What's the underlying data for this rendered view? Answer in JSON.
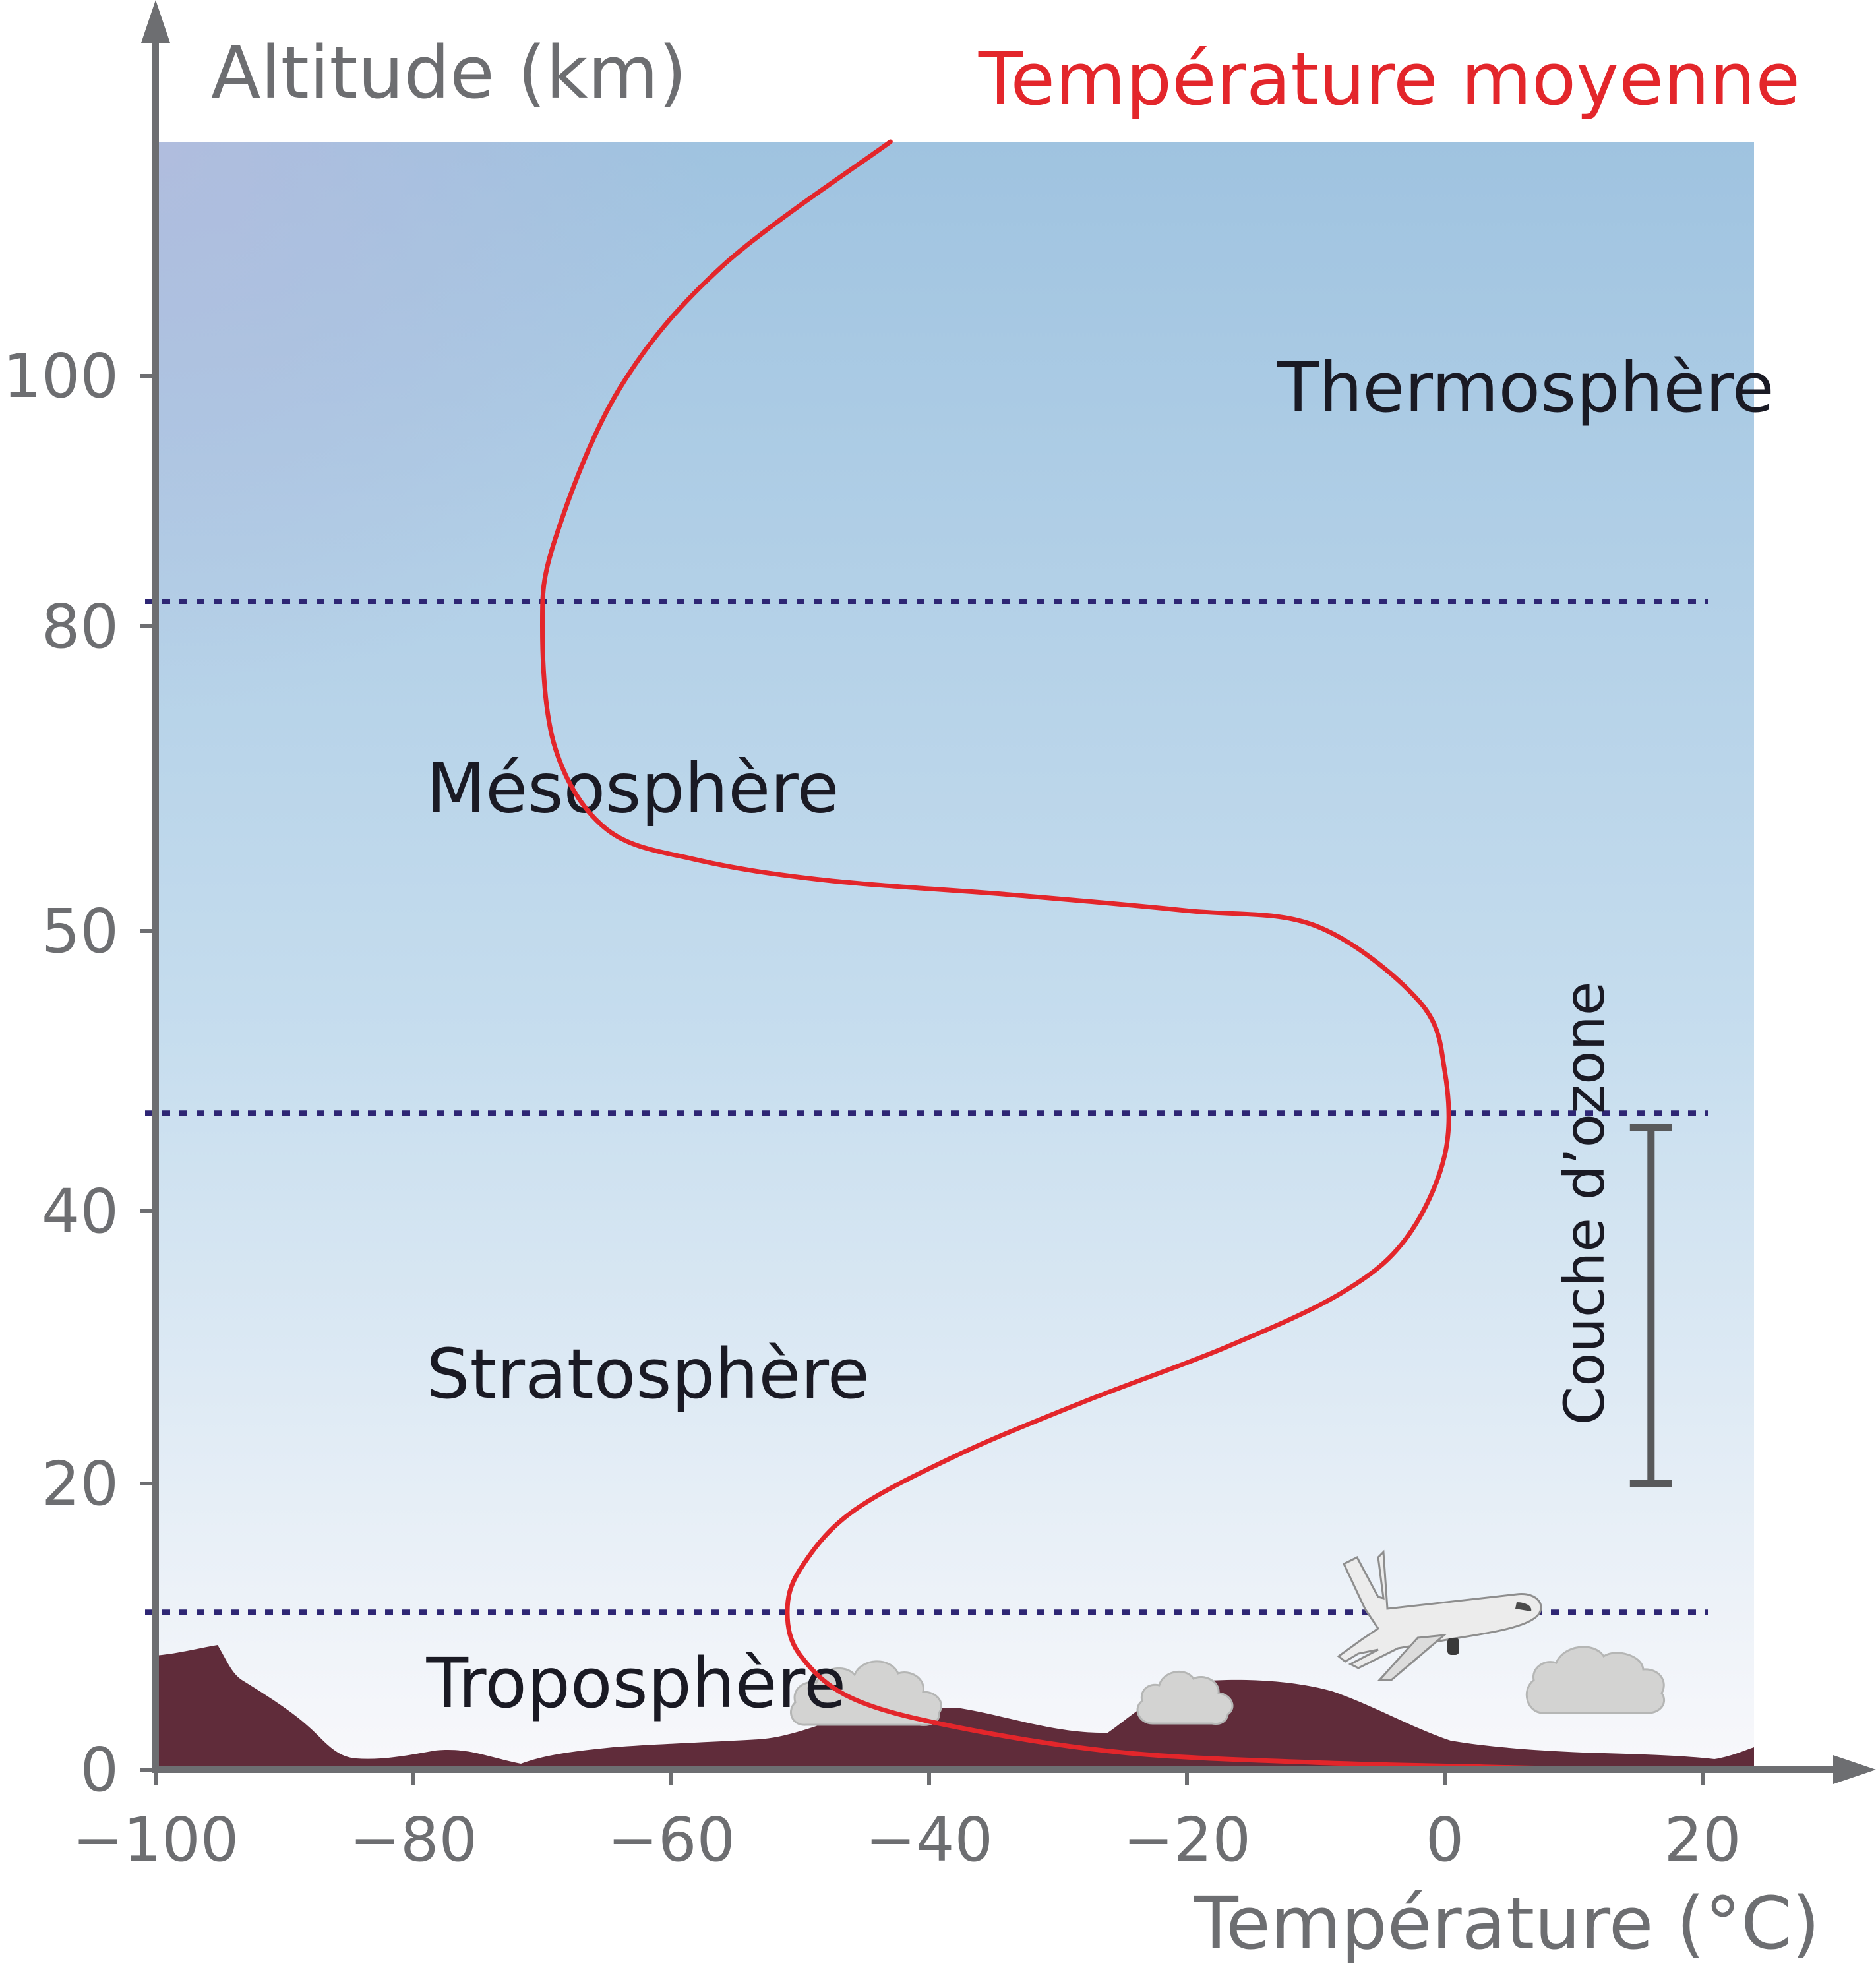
{
  "chart_data": {
    "type": "line",
    "xlabel": "Température (°C)",
    "ylabel": "Altitude (km)",
    "xlim": [
      -100,
      23
    ],
    "ylim": [
      0,
      117
    ],
    "x_ticks": [
      -100,
      -80,
      -60,
      -40,
      -20,
      0,
      20
    ],
    "x_tick_labels": [
      "−100",
      "−80",
      "−60",
      "−40",
      "−20",
      "0",
      "20"
    ],
    "y_ticks": [
      0,
      20,
      40,
      50,
      80,
      100
    ],
    "y_tick_labels": [
      "0",
      "20",
      "40",
      "50",
      "80",
      "100"
    ],
    "y_scale": "piecewise",
    "y_scale_segments": [
      {
        "from": 0,
        "to": 40,
        "gap_per_unit": 11.0
      },
      {
        "from": 40,
        "to": 50,
        "gap_per_unit": 21.0
      },
      {
        "from": 50,
        "to": 80,
        "gap_per_unit": 11.0
      },
      {
        "from": 80,
        "to": 117,
        "gap_per_unit": 9.2
      }
    ],
    "series": [
      {
        "name": "Température moyenne",
        "color": "#e3262b",
        "points": [
          [
            13,
            0
          ],
          [
            3,
            0.2
          ],
          [
            -10,
            0.5
          ],
          [
            -25,
            1.2
          ],
          [
            -38,
            3
          ],
          [
            -46,
            5
          ],
          [
            -50,
            8
          ],
          [
            -51,
            11
          ],
          [
            -50,
            14
          ],
          [
            -46,
            18
          ],
          [
            -38,
            22
          ],
          [
            -28,
            26
          ],
          [
            -17,
            30
          ],
          [
            -8,
            34
          ],
          [
            -3,
            38
          ],
          [
            0,
            42
          ],
          [
            0,
            45
          ],
          [
            -2,
            47.5
          ],
          [
            -10,
            50.5
          ],
          [
            -20,
            52
          ],
          [
            -33,
            53.5
          ],
          [
            -48,
            55
          ],
          [
            -58,
            57
          ],
          [
            -65,
            60
          ],
          [
            -69,
            68
          ],
          [
            -70,
            80
          ],
          [
            -69,
            87
          ],
          [
            -64,
            99
          ],
          [
            -56,
            108
          ],
          [
            -43,
            117
          ]
        ]
      }
    ],
    "boundaries": [
      {
        "altitude": 11,
        "style": "dotted",
        "color": "#2e2674"
      },
      {
        "altitude": 43.5,
        "style": "dotted",
        "color": "#2e2674"
      },
      {
        "altitude": 82,
        "style": "dotted",
        "color": "#2e2674"
      }
    ],
    "layers": [
      {
        "label": "Troposphère",
        "x": -79,
        "y": 6
      },
      {
        "label": "Stratosphère",
        "x": -79,
        "y": 28
      },
      {
        "label": "Mésosphère",
        "x": -79,
        "y": 64
      },
      {
        "label": "Thermosphère",
        "x": -13,
        "y": 99
      }
    ],
    "ozone_layer": {
      "label": "Couche d’ozone",
      "from": 20,
      "to": 43,
      "x": 16
    },
    "legend": {
      "label": "Température moyenne",
      "color": "#e3262b",
      "position": "top-right"
    },
    "grid": false,
    "background": {
      "top_color": "#9fc3e0",
      "bottom_color": "#f8f8fb"
    },
    "ground_color": "#602c3a"
  }
}
